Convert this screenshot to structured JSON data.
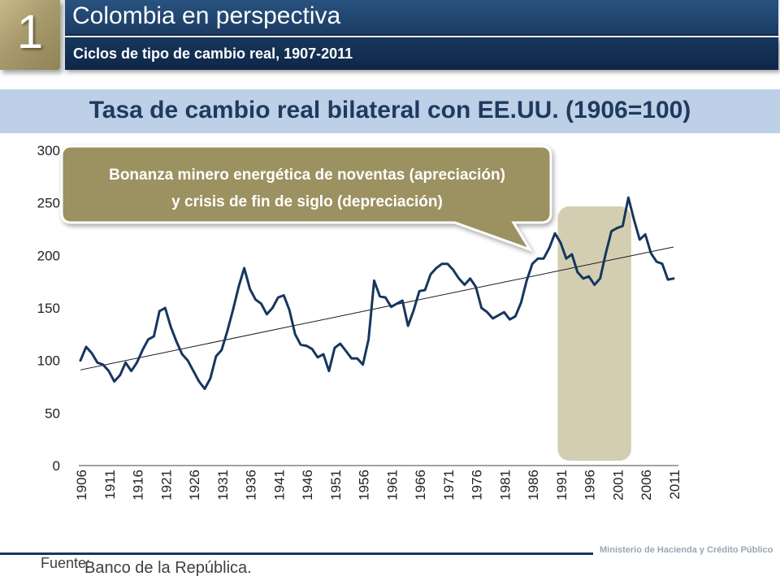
{
  "header": {
    "section_number": "1",
    "title": "Colombia en perspectiva",
    "subtitle": "Ciclos de tipo de cambio real, 1907-2011"
  },
  "chart_heading": "Tasa de cambio real bilateral con EE.UU. (1906=100)",
  "callout": {
    "line1": "Bonanza minero energética de noventas (apreciación)",
    "line2": "y crisis de fin de siglo (depreciación)"
  },
  "footer": {
    "source_label": "Fuente:",
    "source_text": "Banco de la República.",
    "logo_text": "Ministerio de Hacienda y Crédito Público"
  },
  "colors": {
    "series": "#17365d",
    "trend": "#1a1a1a",
    "highlight": "#d3ceb2",
    "callout": "#9c9160"
  },
  "chart_data": {
    "type": "line",
    "title": "Tasa de cambio real bilateral con EE.UU. (1906=100)",
    "ylim": [
      0,
      300
    ],
    "yticks": [
      0,
      50,
      100,
      150,
      200,
      250,
      300
    ],
    "xlim": [
      1906,
      2011
    ],
    "xticks": [
      1906,
      1911,
      1916,
      1921,
      1926,
      1931,
      1936,
      1941,
      1946,
      1951,
      1956,
      1961,
      1966,
      1971,
      1976,
      1981,
      1986,
      1991,
      1996,
      2001,
      2006,
      2011
    ],
    "highlight_range": [
      1990.5,
      2003.5
    ],
    "trend_line": {
      "x": [
        1906,
        2011
      ],
      "y": [
        91,
        208
      ]
    },
    "series": [
      {
        "x": [
          1906,
          1907,
          1908,
          1909,
          1910,
          1911,
          1912,
          1913,
          1914,
          1915,
          1916,
          1917,
          1918,
          1919,
          1920,
          1921,
          1922,
          1923,
          1924,
          1925,
          1926,
          1927,
          1928,
          1929,
          1930,
          1931,
          1932,
          1933,
          1934,
          1935,
          1936,
          1937,
          1938,
          1939,
          1940,
          1941,
          1942,
          1943,
          1944,
          1945,
          1946,
          1947,
          1948,
          1949,
          1950,
          1951,
          1952,
          1953,
          1954,
          1955,
          1956,
          1957,
          1958,
          1959,
          1960,
          1961,
          1962,
          1963,
          1964,
          1965,
          1966,
          1967,
          1968,
          1969,
          1970,
          1971,
          1972,
          1973,
          1974,
          1975,
          1976,
          1977,
          1978,
          1979,
          1980,
          1981,
          1982,
          1983,
          1984,
          1985,
          1986,
          1987,
          1988,
          1989,
          1990,
          1991,
          1992,
          1993,
          1994,
          1995,
          1996,
          1997,
          1998,
          1999,
          2000,
          2001,
          2002,
          2003,
          2004,
          2005,
          2006,
          2007,
          2008,
          2009,
          2010,
          2011
        ],
        "values": [
          100,
          113,
          107,
          98,
          96,
          90,
          80,
          86,
          98,
          90,
          98,
          110,
          120,
          123,
          147,
          150,
          132,
          118,
          106,
          100,
          90,
          80,
          73,
          83,
          104,
          110,
          128,
          148,
          170,
          188,
          168,
          158,
          154,
          144,
          150,
          160,
          162,
          148,
          125,
          115,
          114,
          111,
          103,
          106,
          90,
          112,
          116,
          109,
          102,
          102,
          96,
          120,
          176,
          161,
          160,
          151,
          154,
          157,
          133,
          148,
          166,
          167,
          182,
          188,
          192,
          192,
          186,
          178,
          172,
          178,
          170,
          150,
          146,
          140,
          143,
          146,
          139,
          142,
          155,
          176,
          192,
          197,
          197,
          207,
          221,
          212,
          197,
          201,
          184,
          178,
          180,
          172,
          178,
          202,
          223,
          226,
          228,
          255,
          234,
          215,
          220,
          202,
          194,
          192,
          177,
          178
        ]
      }
    ]
  }
}
